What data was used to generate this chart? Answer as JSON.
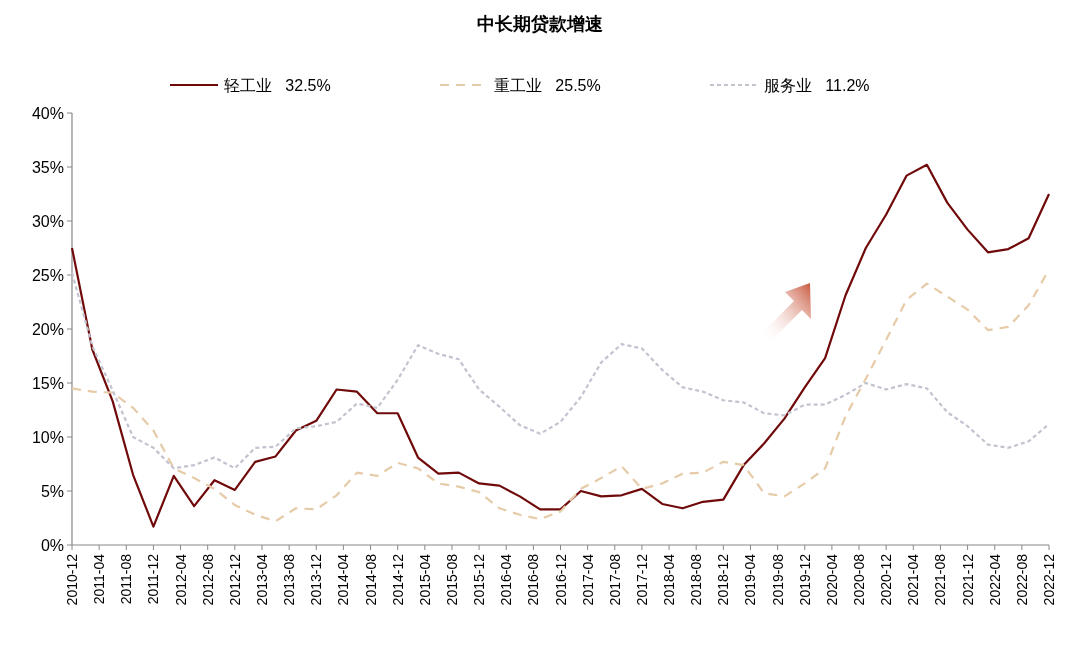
{
  "chart_data": {
    "type": "line",
    "title": "中长期贷款增速",
    "x": [
      "2010-12",
      "2011-03",
      "2011-06",
      "2011-09",
      "2011-12",
      "2012-03",
      "2012-06",
      "2012-09",
      "2012-12",
      "2013-03",
      "2013-06",
      "2013-09",
      "2013-12",
      "2014-03",
      "2014-06",
      "2014-09",
      "2014-12",
      "2015-03",
      "2015-06",
      "2015-09",
      "2015-12",
      "2016-03",
      "2016-06",
      "2016-09",
      "2016-12",
      "2017-03",
      "2017-06",
      "2017-09",
      "2017-12",
      "2018-03",
      "2018-06",
      "2018-09",
      "2018-12",
      "2019-03",
      "2019-06",
      "2019-09",
      "2019-12",
      "2020-03",
      "2020-06",
      "2020-09",
      "2020-12",
      "2021-03",
      "2021-06",
      "2021-09",
      "2021-12",
      "2022-03",
      "2022-06",
      "2022-09",
      "2022-12"
    ],
    "series": [
      {
        "name": "轻工业   32.5%",
        "color": "#700a0a",
        "line_style": "solid",
        "values": [
          27.5,
          18.1,
          13.3,
          6.5,
          1.7,
          6.4,
          3.6,
          6.0,
          5.1,
          7.7,
          8.2,
          10.6,
          11.5,
          14.4,
          14.2,
          12.2,
          12.2,
          8.1,
          6.6,
          6.7,
          5.7,
          5.5,
          4.5,
          3.3,
          3.3,
          5.0,
          4.5,
          4.6,
          5.2,
          3.8,
          3.4,
          4.0,
          4.2,
          7.4,
          9.4,
          11.7,
          14.6,
          17.3,
          23.1,
          27.5,
          30.6,
          34.2,
          35.2,
          31.7,
          29.2,
          27.1,
          27.4,
          28.4,
          32.5
        ]
      },
      {
        "name": "重工业   25.5%",
        "color": "#e6cba8",
        "line_style": "dashed",
        "values": [
          14.5,
          14.2,
          14.1,
          12.7,
          10.6,
          7.1,
          6.2,
          5.2,
          3.7,
          2.8,
          2.2,
          3.4,
          3.3,
          4.6,
          6.7,
          6.4,
          7.6,
          7.1,
          5.7,
          5.4,
          4.9,
          3.4,
          2.8,
          2.4,
          3.1,
          5.2,
          6.2,
          7.3,
          5.2,
          5.7,
          6.6,
          6.7,
          7.7,
          7.4,
          4.8,
          4.5,
          5.7,
          7.1,
          11.9,
          15.4,
          19.0,
          22.7,
          24.2,
          23.0,
          21.8,
          19.9,
          20.2,
          22.2,
          25.5
        ]
      },
      {
        "name": "服务业   11.2%",
        "color": "#c2c3cf",
        "line_style": "dotted",
        "values": [
          25.2,
          18.4,
          14.3,
          10.0,
          9.0,
          7.1,
          7.4,
          8.1,
          7.1,
          9.0,
          9.1,
          10.8,
          11.0,
          11.4,
          13.1,
          12.7,
          15.3,
          18.5,
          17.7,
          17.2,
          14.4,
          12.8,
          11.1,
          10.3,
          11.4,
          13.7,
          16.9,
          18.6,
          18.2,
          16.2,
          14.6,
          14.2,
          13.4,
          13.2,
          12.2,
          12.0,
          13.0,
          13.0,
          13.9,
          15.0,
          14.4,
          14.9,
          14.5,
          12.3,
          11.0,
          9.3,
          9.0,
          9.6,
          11.2
        ]
      }
    ],
    "xlim": [
      "2010-12",
      "2022-12"
    ],
    "xticks": [
      "2010-12",
      "2011-04",
      "2011-08",
      "2011-12",
      "2012-04",
      "2012-08",
      "2012-12",
      "2013-04",
      "2013-08",
      "2013-12",
      "2014-04",
      "2014-08",
      "2014-12",
      "2015-04",
      "2015-08",
      "2015-12",
      "2016-04",
      "2016-08",
      "2016-12",
      "2017-04",
      "2017-08",
      "2017-12",
      "2018-04",
      "2018-08",
      "2018-12",
      "2019-04",
      "2019-08",
      "2019-12",
      "2020-04",
      "2020-08",
      "2020-12",
      "2021-04",
      "2021-08",
      "2021-12",
      "2022-04",
      "2022-08",
      "2022-12"
    ],
    "ylim": [
      0,
      40
    ],
    "yticks": [
      {
        "value": 0,
        "label": "0%"
      },
      {
        "value": 5,
        "label": "5%"
      },
      {
        "value": 10,
        "label": "10%"
      },
      {
        "value": 15,
        "label": "15%"
      },
      {
        "value": 20,
        "label": "20%"
      },
      {
        "value": 25,
        "label": "25%"
      },
      {
        "value": 30,
        "label": "30%"
      },
      {
        "value": 35,
        "label": "35%"
      },
      {
        "value": 40,
        "label": "40%"
      }
    ],
    "grid": false,
    "legend": "top"
  }
}
